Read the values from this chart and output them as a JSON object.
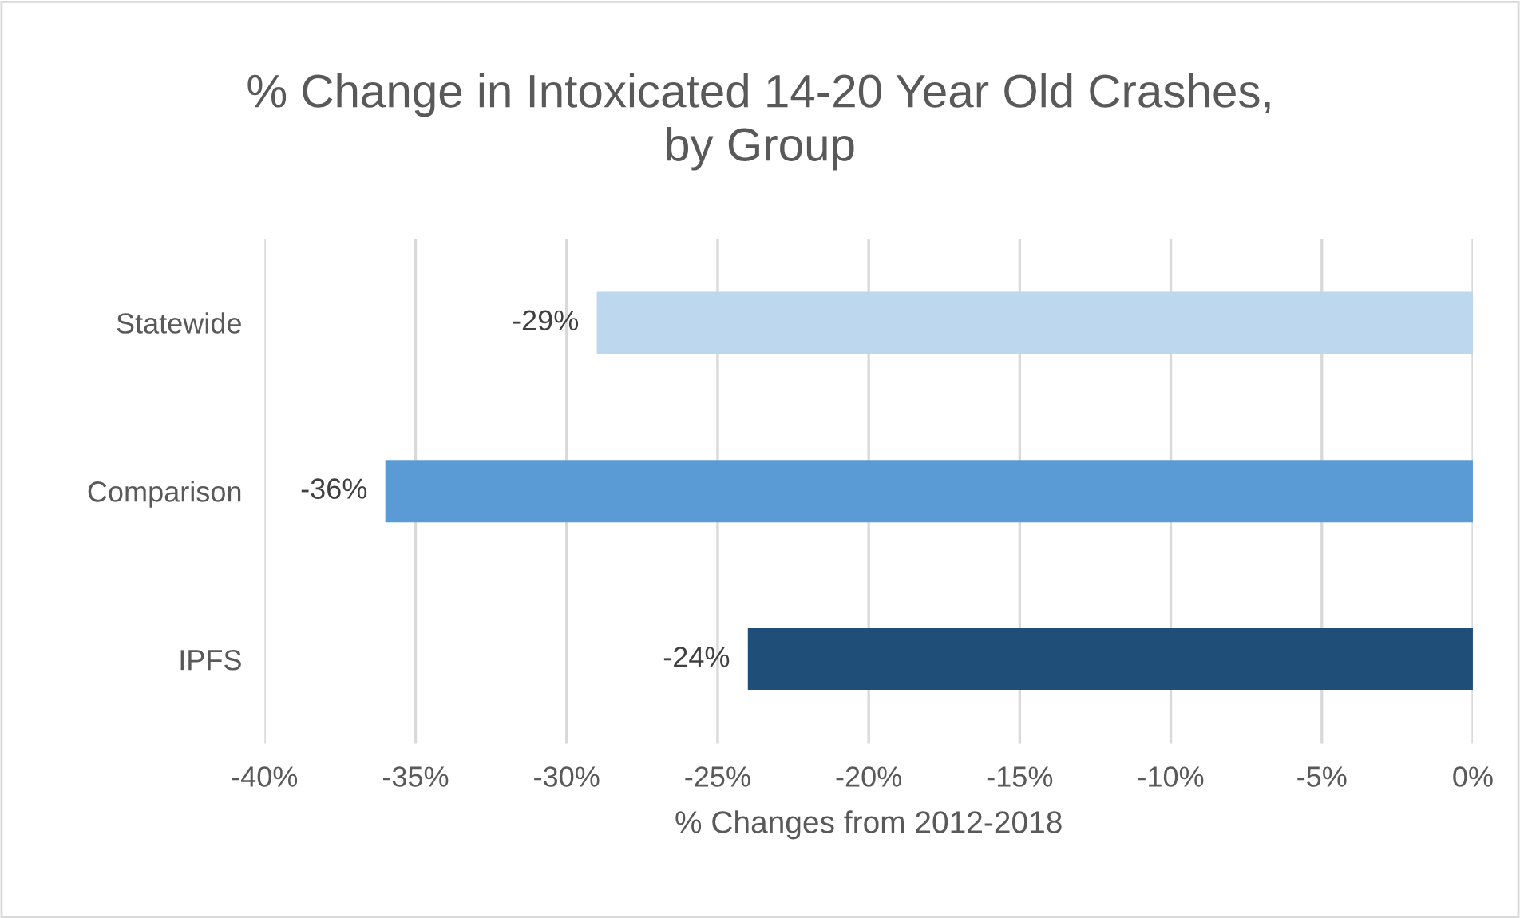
{
  "chart_data": {
    "type": "bar",
    "orientation": "horizontal",
    "title": "% Change in Intoxicated 14-20 Year Old Crashes,\nby Group",
    "xlabel": "% Changes from 2012-2018",
    "categories": [
      "Statewide",
      "Comparison",
      "IPFS"
    ],
    "values": [
      -29,
      -36,
      -24
    ],
    "colors": [
      "#bdd7ee",
      "#5b9bd5",
      "#1f4e79"
    ],
    "value_labels": [
      "-29%",
      "-36%",
      "-24%"
    ],
    "xlim": [
      -40,
      0
    ],
    "xticks": [
      {
        "value": -40,
        "label": "-40%"
      },
      {
        "value": -35,
        "label": "-35%"
      },
      {
        "value": -30,
        "label": "-30%"
      },
      {
        "value": -25,
        "label": "-25%"
      },
      {
        "value": -20,
        "label": "-20%"
      },
      {
        "value": -15,
        "label": "-15%"
      },
      {
        "value": -10,
        "label": "-10%"
      },
      {
        "value": -5,
        "label": "-5%"
      },
      {
        "value": 0,
        "label": "0%"
      }
    ],
    "grid": "x",
    "legend": false
  }
}
